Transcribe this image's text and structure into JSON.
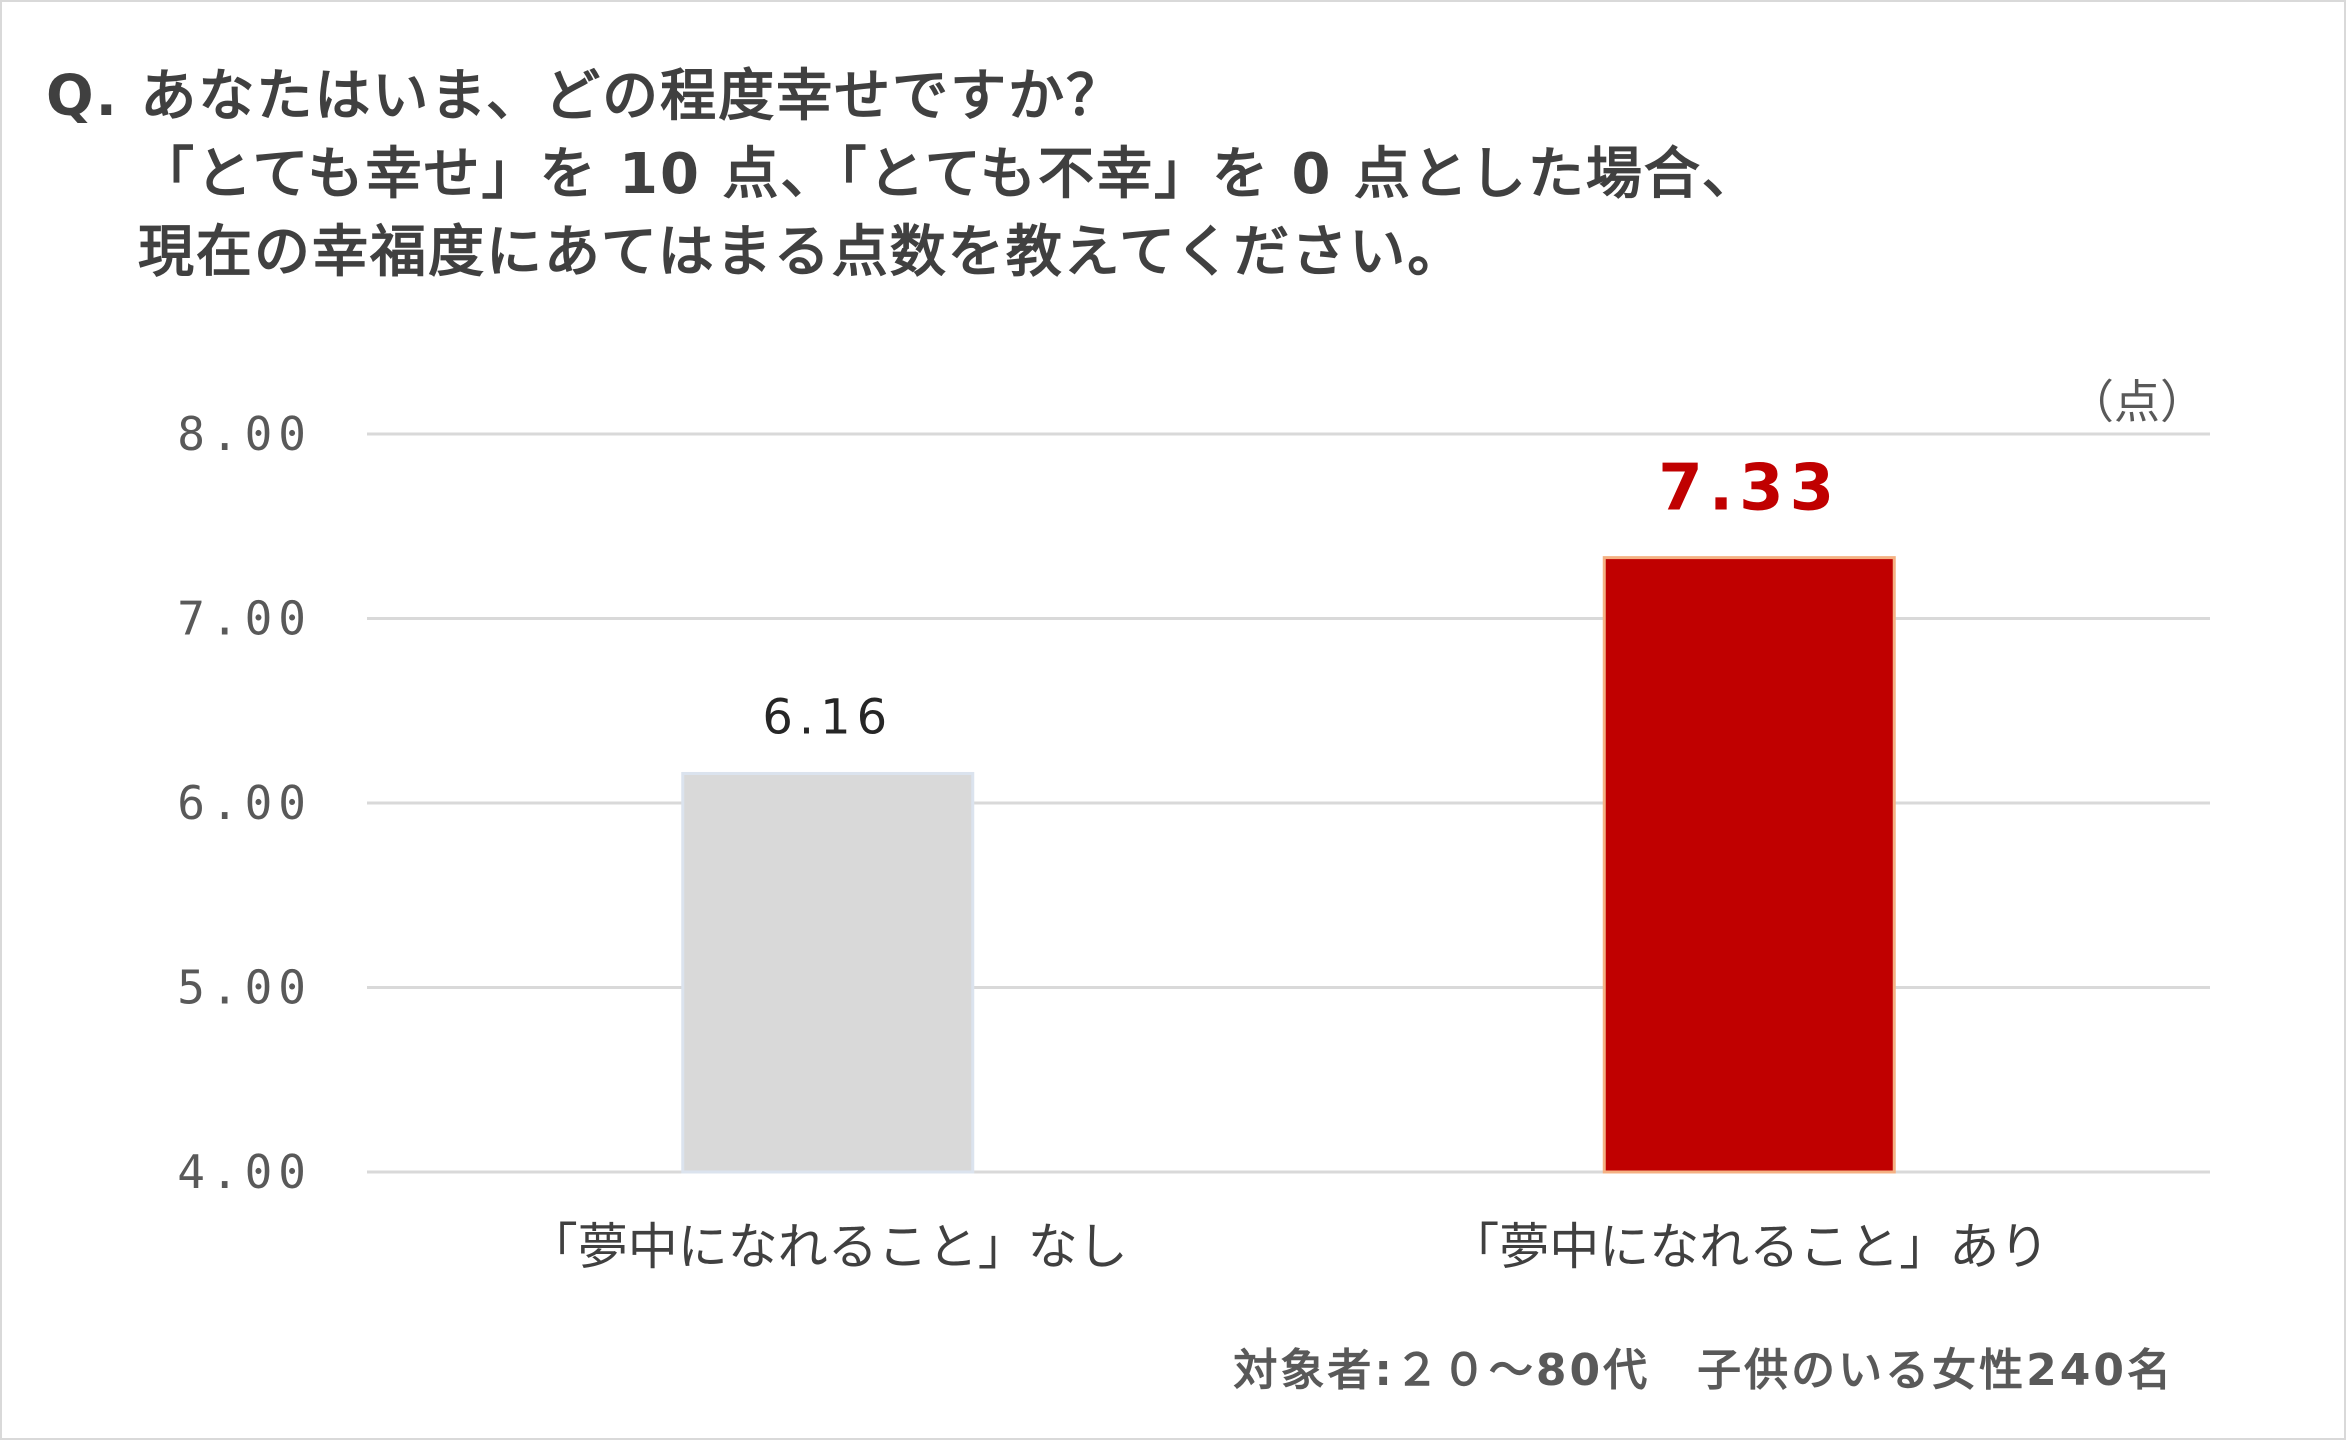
{
  "question": {
    "line1": "Q. あなたはいま、どの程度幸せですか？",
    "line2": "「とても幸せ」を 10 点、「とても不幸」を 0 点とした場合、",
    "line3": "現在の幸福度にあてはまる点数を教えてください。"
  },
  "unit_label": "（点）",
  "footnote": "対象者:２０～80代　子供のいる女性240名",
  "colors": {
    "bar_none": "#d9d9d9",
    "bar_none_border": "#dbe3ee",
    "bar_yes": "#c00000",
    "bar_yes_border": "#f4b183",
    "label_none": "#262626",
    "label_yes": "#c00000",
    "grid": "#d9d9d9"
  },
  "chart_data": {
    "type": "bar",
    "categories": [
      "「夢中になれること」なし",
      "「夢中になれること」あり"
    ],
    "values": [
      6.16,
      7.33
    ],
    "data_labels": [
      "6.16",
      "7.33"
    ],
    "ylim": [
      4.0,
      8.0
    ],
    "yticks": [
      8.0,
      7.0,
      6.0,
      5.0,
      4.0
    ],
    "ytick_labels": [
      "8.00",
      "7.00",
      "6.00",
      "5.00",
      "4.00"
    ],
    "ylabel": "（点）",
    "grid": true,
    "legend": "none"
  }
}
